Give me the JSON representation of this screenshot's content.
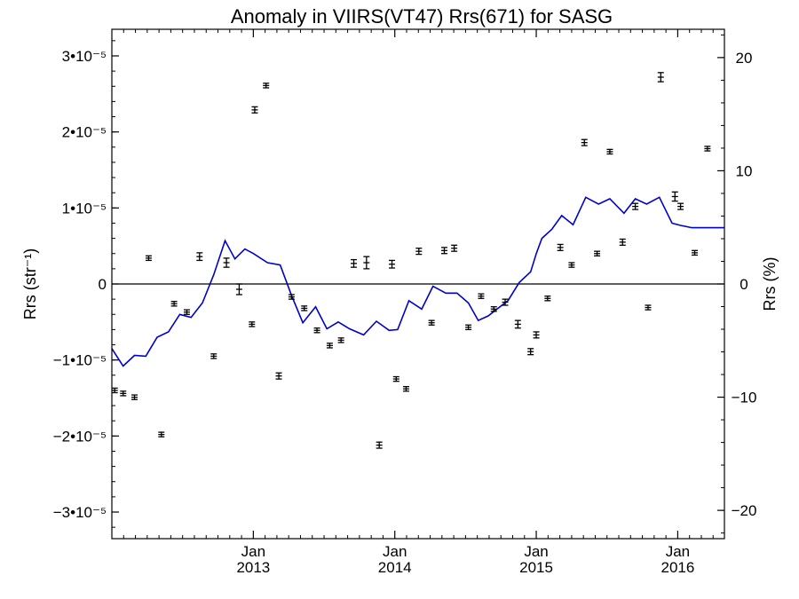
{
  "chart_data": {
    "type": "scatter",
    "title": "Anomaly in VIIRS(VT47) Rrs(671) for SASG",
    "ylabel": "Rrs (str⁻¹)",
    "y2label": "Rrs (%)",
    "xlim": [
      2012.0,
      2016.33
    ],
    "ylim": [
      -3.35e-05,
      3.35e-05
    ],
    "y2lim": [
      -22.5,
      22.5
    ],
    "grid": false,
    "zero_line": true,
    "x_ticks": [
      {
        "x": 2013.0,
        "month": "Jan",
        "year": "2013"
      },
      {
        "x": 2014.0,
        "month": "Jan",
        "year": "2014"
      },
      {
        "x": 2015.0,
        "month": "Jan",
        "year": "2015"
      },
      {
        "x": 2016.0,
        "month": "Jan",
        "year": "2016"
      }
    ],
    "y_ticks": [
      {
        "v": 3e-05,
        "label": "3•10⁻⁵"
      },
      {
        "v": 2e-05,
        "label": "2•10⁻⁵"
      },
      {
        "v": 1e-05,
        "label": "1•10⁻⁵"
      },
      {
        "v": 0,
        "label": "0"
      },
      {
        "v": -1e-05,
        "label": "−1•10⁻⁵"
      },
      {
        "v": -2e-05,
        "label": "−2•10⁻⁵"
      },
      {
        "v": -3e-05,
        "label": "−3•10⁻⁵"
      }
    ],
    "y2_ticks": [
      {
        "v": 20,
        "label": "20"
      },
      {
        "v": 10,
        "label": "10"
      },
      {
        "v": 0,
        "label": "0"
      },
      {
        "v": -10,
        "label": "−10"
      },
      {
        "v": -20,
        "label": "−20"
      }
    ],
    "series": [
      {
        "type": "errorbar",
        "color": "#000000",
        "axis": "left",
        "points": [
          {
            "x": 2012.02,
            "y": -1.4e-05,
            "err": 3e-07
          },
          {
            "x": 2012.08,
            "y": -1.44e-05,
            "err": 3e-07
          },
          {
            "x": 2012.16,
            "y": -1.49e-05,
            "err": 3e-07
          },
          {
            "x": 2012.26,
            "y": 3.4e-06,
            "err": 3e-07
          },
          {
            "x": 2012.35,
            "y": -1.98e-05,
            "err": 3e-07
          },
          {
            "x": 2012.44,
            "y": -2.6e-06,
            "err": 3e-07
          },
          {
            "x": 2012.53,
            "y": -3.7e-06,
            "err": 3e-07
          },
          {
            "x": 2012.62,
            "y": 3.6e-06,
            "err": 5e-07
          },
          {
            "x": 2012.72,
            "y": -9.5e-06,
            "err": 3e-07
          },
          {
            "x": 2012.81,
            "y": 2.8e-06,
            "err": 6e-07
          },
          {
            "x": 2012.9,
            "y": -7e-07,
            "err": 7e-07
          },
          {
            "x": 2012.99,
            "y": -5.3e-06,
            "err": 3e-07
          },
          {
            "x": 2013.01,
            "y": 2.29e-05,
            "err": 4e-07
          },
          {
            "x": 2013.09,
            "y": 2.61e-05,
            "err": 3e-07
          },
          {
            "x": 2013.18,
            "y": -1.21e-05,
            "err": 4e-07
          },
          {
            "x": 2013.27,
            "y": -1.7e-06,
            "err": 3e-07
          },
          {
            "x": 2013.36,
            "y": -3.2e-06,
            "err": 3e-07
          },
          {
            "x": 2013.45,
            "y": -6.1e-06,
            "err": 3e-07
          },
          {
            "x": 2013.54,
            "y": -8.1e-06,
            "err": 3e-07
          },
          {
            "x": 2013.62,
            "y": -7.4e-06,
            "err": 3e-07
          },
          {
            "x": 2013.71,
            "y": 2.7e-06,
            "err": 5e-07
          },
          {
            "x": 2013.8,
            "y": 2.8e-06,
            "err": 8e-07
          },
          {
            "x": 2013.89,
            "y": -2.12e-05,
            "err": 4e-07
          },
          {
            "x": 2013.98,
            "y": 2.6e-06,
            "err": 5e-07
          },
          {
            "x": 2014.01,
            "y": -1.25e-05,
            "err": 3e-07
          },
          {
            "x": 2014.08,
            "y": -1.38e-05,
            "err": 3e-07
          },
          {
            "x": 2014.17,
            "y": 4.3e-06,
            "err": 4e-07
          },
          {
            "x": 2014.26,
            "y": -5.1e-06,
            "err": 3e-07
          },
          {
            "x": 2014.35,
            "y": 4.4e-06,
            "err": 4e-07
          },
          {
            "x": 2014.42,
            "y": 4.7e-06,
            "err": 4e-07
          },
          {
            "x": 2014.52,
            "y": -5.7e-06,
            "err": 3e-07
          },
          {
            "x": 2014.61,
            "y": -1.6e-06,
            "err": 3e-07
          },
          {
            "x": 2014.7,
            "y": -3.3e-06,
            "err": 3e-07
          },
          {
            "x": 2014.78,
            "y": -2.4e-06,
            "err": 4e-07
          },
          {
            "x": 2014.87,
            "y": -5.3e-06,
            "err": 5e-07
          },
          {
            "x": 2014.96,
            "y": -8.9e-06,
            "err": 4e-07
          },
          {
            "x": 2015.0,
            "y": -6.7e-06,
            "err": 4e-07
          },
          {
            "x": 2015.08,
            "y": -1.9e-06,
            "err": 3e-07
          },
          {
            "x": 2015.17,
            "y": 4.8e-06,
            "err": 4e-07
          },
          {
            "x": 2015.25,
            "y": 2.5e-06,
            "err": 3e-07
          },
          {
            "x": 2015.34,
            "y": 1.86e-05,
            "err": 4e-07
          },
          {
            "x": 2015.43,
            "y": 4e-06,
            "err": 3e-07
          },
          {
            "x": 2015.52,
            "y": 1.74e-05,
            "err": 3e-07
          },
          {
            "x": 2015.61,
            "y": 5.5e-06,
            "err": 4e-07
          },
          {
            "x": 2015.7,
            "y": 1.02e-05,
            "err": 4e-07
          },
          {
            "x": 2015.79,
            "y": -3.1e-06,
            "err": 3e-07
          },
          {
            "x": 2015.88,
            "y": 2.72e-05,
            "err": 6e-07
          },
          {
            "x": 2015.98,
            "y": 1.15e-05,
            "err": 6e-07
          },
          {
            "x": 2016.02,
            "y": 1.02e-05,
            "err": 4e-07
          },
          {
            "x": 2016.12,
            "y": 4.1e-06,
            "err": 3e-07
          },
          {
            "x": 2016.21,
            "y": 1.78e-05,
            "err": 3e-07
          }
        ]
      },
      {
        "type": "line",
        "color": "#0000cc",
        "axis": "left",
        "x": [
          2012.0,
          2012.08,
          2012.16,
          2012.24,
          2012.32,
          2012.4,
          2012.48,
          2012.56,
          2012.64,
          2012.72,
          2012.8,
          2012.87,
          2012.94,
          2013.0,
          2013.1,
          2013.19,
          2013.27,
          2013.35,
          2013.44,
          2013.52,
          2013.6,
          2013.68,
          2013.78,
          2013.87,
          2013.96,
          2014.02,
          2014.1,
          2014.19,
          2014.27,
          2014.36,
          2014.44,
          2014.52,
          2014.59,
          2014.66,
          2014.73,
          2014.8,
          2014.88,
          2014.96,
          2015.0,
          2015.04,
          2015.11,
          2015.18,
          2015.26,
          2015.35,
          2015.44,
          2015.52,
          2015.62,
          2015.7,
          2015.78,
          2015.87,
          2015.96,
          2016.02,
          2016.1,
          2016.2,
          2016.27,
          2016.33
        ],
        "y": [
          -8.5e-06,
          -1.08e-05,
          -9.4e-06,
          -9.5e-06,
          -7e-06,
          -6.3e-06,
          -4e-06,
          -4.4e-06,
          -2.5e-06,
          1.2e-06,
          5.7e-06,
          3.3e-06,
          4.6e-06,
          4e-06,
          2.8e-06,
          2.5e-06,
          -1.5e-06,
          -5.1e-06,
          -3e-06,
          -5.9e-06,
          -5e-06,
          -5.9e-06,
          -6.7e-06,
          -4.9e-06,
          -6.1e-06,
          -6e-06,
          -2.2e-06,
          -3.3e-06,
          -3e-07,
          -1.2e-06,
          -1.2e-06,
          -2.5e-06,
          -4.8e-06,
          -4.2e-06,
          -3.2e-06,
          -2.2e-06,
          2e-07,
          1.6e-06,
          4e-06,
          6e-06,
          7.2e-06,
          9e-06,
          7.8e-06,
          1.14e-05,
          1.05e-05,
          1.12e-05,
          9.3e-06,
          1.12e-05,
          1.05e-05,
          1.14e-05,
          8e-06,
          7.7e-06,
          7.4e-06,
          7.4e-06,
          7.4e-06,
          7.4e-06
        ]
      }
    ]
  }
}
